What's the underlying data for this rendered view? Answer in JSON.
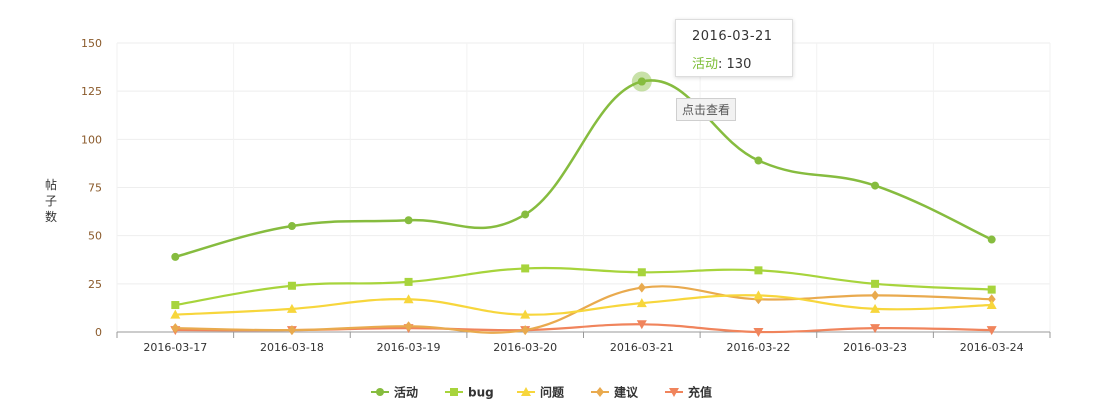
{
  "chart_data": {
    "type": "line",
    "title": "",
    "xlabel": "",
    "ylabel": "帖子数",
    "ylim": [
      0,
      150
    ],
    "yticks": [
      0,
      25,
      50,
      75,
      100,
      125,
      150
    ],
    "grid": true,
    "legend_position": "bottom",
    "categories": [
      "2016-03-17",
      "2016-03-18",
      "2016-03-19",
      "2016-03-20",
      "2016-03-21",
      "2016-03-22",
      "2016-03-23",
      "2016-03-24"
    ],
    "series": [
      {
        "name": "活动",
        "color": "#86bc3f",
        "marker": "circle",
        "values": [
          39,
          55,
          58,
          61,
          130,
          89,
          76,
          48
        ]
      },
      {
        "name": "bug",
        "color": "#a7d43c",
        "marker": "square",
        "values": [
          14,
          24,
          26,
          33,
          31,
          32,
          25,
          22
        ]
      },
      {
        "name": "问题",
        "color": "#f7d63c",
        "marker": "triangle",
        "values": [
          9,
          12,
          17,
          9,
          15,
          19,
          12,
          14
        ]
      },
      {
        "name": "建议",
        "color": "#e9aa4e",
        "marker": "diamond",
        "values": [
          2,
          1,
          3,
          1,
          23,
          17,
          19,
          17
        ]
      },
      {
        "name": "充值",
        "color": "#f0845c",
        "marker": "triangle-down",
        "values": [
          1,
          1,
          2,
          1,
          4,
          0,
          2,
          1
        ]
      }
    ]
  },
  "tooltip": {
    "date": "2016-03-21",
    "series_name": "活动",
    "value_text": ": 130"
  },
  "hint": "点击查看"
}
